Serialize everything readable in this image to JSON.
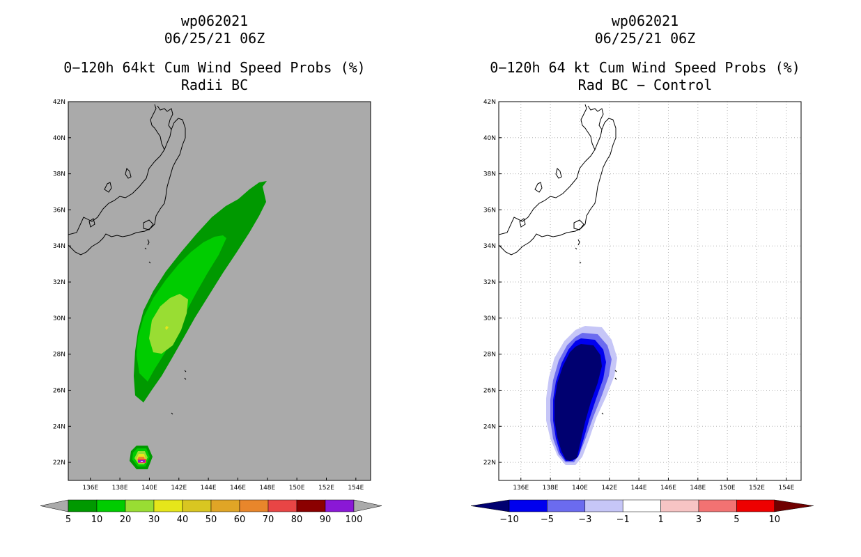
{
  "left_panel": {
    "storm_id": "wp062021",
    "datetime": "06/25/21 06Z",
    "product": "0−120h 64kt Cum Wind Speed Probs (%)",
    "subtitle": "Radii BC",
    "colorbar": {
      "labels": [
        "5",
        "10",
        "20",
        "30",
        "40",
        "50",
        "60",
        "70",
        "80",
        "90",
        "100"
      ],
      "colors": [
        "#009900",
        "#00cc00",
        "#99dd33",
        "#e6e61a",
        "#d9c621",
        "#e0a526",
        "#e8862b",
        "#e84545",
        "#8b0000",
        "#8a18d6"
      ],
      "end_color": "#aaaaaa"
    },
    "background_color": "#aaaaaa"
  },
  "right_panel": {
    "storm_id": "wp062021",
    "datetime": "06/25/21 06Z",
    "product": "0−120h 64 kt Cum Wind Speed Probs (%)",
    "subtitle": "Rad BC − Control",
    "colorbar": {
      "labels": [
        "−10",
        "−5",
        "−3",
        "−1",
        "1",
        "3",
        "5",
        "10"
      ],
      "colors": [
        "#000070",
        "#0000ee",
        "#6b6bef",
        "#c6c6f7",
        "#ffffff",
        "#f7c4c4",
        "#f27272",
        "#ee0000",
        "#700000"
      ]
    },
    "background_color": "#ffffff"
  },
  "map": {
    "lat_labels": [
      "42N",
      "40N",
      "38N",
      "36N",
      "34N",
      "32N",
      "30N",
      "28N",
      "26N",
      "24N",
      "22N"
    ],
    "lon_labels": [
      "136E",
      "138E",
      "140E",
      "142E",
      "144E",
      "146E",
      "148E",
      "150E",
      "152E",
      "154E"
    ],
    "lat_range": [
      21,
      42
    ],
    "lon_range": [
      134.5,
      155
    ]
  }
}
